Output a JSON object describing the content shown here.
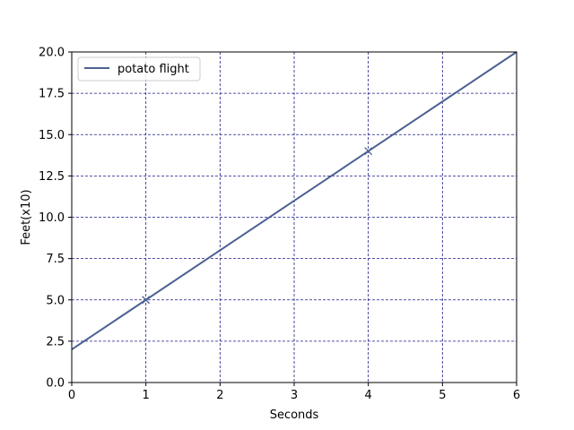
{
  "chart_data": {
    "type": "line",
    "title": "",
    "xlabel": "Seconds",
    "ylabel": "Feet(x10)",
    "xlim": [
      0,
      6
    ],
    "ylim": [
      0,
      20
    ],
    "xticks": [
      "0",
      "1",
      "2",
      "3",
      "4",
      "5",
      "6"
    ],
    "yticks": [
      "0.0",
      "2.5",
      "5.0",
      "7.5",
      "10.0",
      "12.5",
      "15.0",
      "17.5",
      "20.0"
    ],
    "grid": true,
    "legend": "top-left",
    "series": [
      {
        "name": "potato flight",
        "x": [
          0,
          6
        ],
        "y": [
          2,
          20
        ],
        "color": "#4c6092",
        "markers": {
          "symbol": "x",
          "x": [
            1,
            4
          ],
          "y": [
            5,
            14
          ]
        }
      }
    ],
    "grid_color": "#1a1a8a"
  }
}
